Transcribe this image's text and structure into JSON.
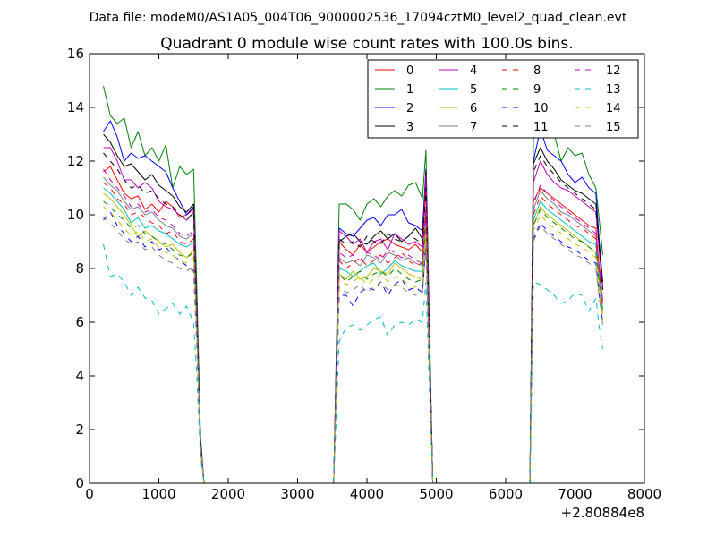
{
  "chart_data": {
    "type": "line",
    "suptitle": "Data file: modeM0/AS1A05_004T06_9000002536_17094cztM0_level2_quad_clean.evt",
    "title": "Quadrant 0 module wise count rates with 100.0s bins.",
    "xlabel": "",
    "ylabel": "",
    "x_offset_label": "+2.80884e8",
    "xlim": [
      0,
      8000
    ],
    "ylim": [
      0,
      16
    ],
    "x_ticks": [
      "0",
      "1000",
      "2000",
      "3000",
      "4000",
      "5000",
      "6000",
      "7000",
      "8000"
    ],
    "y_ticks": [
      "0",
      "2",
      "4",
      "6",
      "8",
      "10",
      "12",
      "14",
      "16"
    ],
    "grid": false,
    "legend_position": "top-right",
    "legend_columns": 4,
    "x": [
      200,
      300,
      400,
      500,
      600,
      700,
      800,
      900,
      1000,
      1100,
      1200,
      1300,
      1400,
      1500,
      1550,
      1600,
      1650,
      1700,
      1800,
      2500,
      3000,
      3500,
      3520,
      3600,
      3700,
      3800,
      3900,
      4000,
      4100,
      4200,
      4300,
      4400,
      4500,
      4600,
      4700,
      4800,
      4850,
      4900,
      4950,
      5000,
      5050,
      5100,
      5500,
      6000,
      6300,
      6350,
      6400,
      6500,
      6600,
      6700,
      6800,
      6900,
      7000,
      7100,
      7200,
      7300,
      7350,
      7400
    ],
    "series": [
      {
        "name": "0",
        "color": "#ff0000",
        "dash": "solid",
        "values": [
          11.6,
          11.8,
          11.3,
          10.8,
          10.6,
          10.7,
          10.2,
          10.4,
          10.1,
          10.5,
          10.3,
          9.9,
          10.0,
          10.2,
          6.0,
          1.5,
          0,
          0,
          0,
          0,
          0,
          0,
          0,
          9.0,
          8.7,
          8.5,
          8.9,
          8.6,
          8.8,
          9.0,
          9.1,
          8.9,
          8.8,
          8.7,
          8.9,
          8.6,
          11.0,
          5.0,
          0,
          0,
          0,
          0,
          0,
          0,
          0,
          0,
          10.5,
          11.0,
          10.8,
          10.6,
          10.4,
          10.2,
          10.0,
          9.8,
          9.6,
          9.5,
          8.0,
          7.5
        ]
      },
      {
        "name": "1",
        "color": "#008000",
        "dash": "solid",
        "values": [
          14.8,
          13.7,
          13.4,
          13.6,
          12.5,
          13.1,
          12.2,
          12.5,
          12.0,
          12.6,
          11.0,
          11.8,
          11.5,
          11.7,
          7.0,
          1.8,
          0,
          0,
          0,
          0,
          0,
          0,
          0,
          10.4,
          10.4,
          10.2,
          9.8,
          10.4,
          10.6,
          10.3,
          10.7,
          10.9,
          10.7,
          11.1,
          11.2,
          10.6,
          12.4,
          6.0,
          0,
          0,
          0,
          0,
          0,
          0,
          0,
          0,
          12.8,
          14.0,
          13.5,
          13.0,
          12.0,
          12.5,
          12.2,
          12.3,
          11.5,
          11.0,
          9.8,
          8.5
        ]
      },
      {
        "name": "2",
        "color": "#0000ff",
        "dash": "solid",
        "values": [
          13.1,
          13.5,
          12.9,
          12.0,
          12.3,
          12.1,
          12.2,
          12.0,
          11.8,
          11.6,
          11.0,
          10.5,
          10.0,
          10.3,
          6.2,
          1.6,
          0,
          0,
          0,
          0,
          0,
          0,
          0,
          9.5,
          9.3,
          9.2,
          9.5,
          9.8,
          9.9,
          9.6,
          10.0,
          10.0,
          10.2,
          9.7,
          9.6,
          9.4,
          11.7,
          5.5,
          0,
          0,
          0,
          0,
          0,
          0,
          0,
          0,
          12.0,
          13.2,
          12.4,
          12.2,
          12.0,
          11.5,
          11.2,
          11.4,
          11.0,
          10.8,
          9.0,
          7.5
        ]
      },
      {
        "name": "3",
        "color": "#000000",
        "dash": "solid",
        "values": [
          13.0,
          12.7,
          12.2,
          11.8,
          11.9,
          11.6,
          11.3,
          11.5,
          11.1,
          10.9,
          10.7,
          10.3,
          10.1,
          10.4,
          6.1,
          1.5,
          0,
          0,
          0,
          0,
          0,
          0,
          0,
          9.0,
          9.2,
          9.3,
          9.0,
          8.9,
          9.2,
          9.4,
          9.1,
          9.3,
          9.0,
          9.2,
          9.5,
          9.1,
          11.6,
          5.3,
          0,
          0,
          0,
          0,
          0,
          0,
          0,
          0,
          11.9,
          12.5,
          12.0,
          11.7,
          11.3,
          11.1,
          10.9,
          10.8,
          10.6,
          10.4,
          8.8,
          7.3
        ]
      },
      {
        "name": "4",
        "color": "#bf00bf",
        "dash": "solid",
        "values": [
          12.5,
          12.5,
          12.0,
          11.3,
          11.3,
          11.0,
          11.2,
          11.0,
          10.5,
          10.3,
          10.2,
          10.0,
          9.8,
          10.1,
          6.0,
          1.5,
          0,
          0,
          0,
          0,
          0,
          0,
          0,
          9.4,
          9.2,
          8.9,
          9.1,
          8.6,
          9.0,
          9.1,
          8.7,
          9.3,
          9.1,
          8.9,
          9.0,
          8.8,
          11.5,
          5.2,
          0,
          0,
          0,
          0,
          0,
          0,
          0,
          0,
          11.2,
          12.0,
          11.5,
          11.2,
          11.0,
          10.9,
          10.7,
          10.5,
          10.3,
          10.1,
          8.6,
          7.2
        ]
      },
      {
        "name": "5",
        "color": "#00bfbf",
        "dash": "solid",
        "values": [
          11.0,
          10.8,
          10.5,
          10.2,
          9.7,
          9.9,
          9.5,
          9.6,
          9.4,
          9.3,
          9.1,
          8.9,
          8.8,
          9.0,
          5.5,
          1.3,
          0,
          0,
          0,
          0,
          0,
          0,
          0,
          8.0,
          7.9,
          7.7,
          7.9,
          8.1,
          8.2,
          7.8,
          8.0,
          8.3,
          8.1,
          8.0,
          7.9,
          7.9,
          9.8,
          4.7,
          0,
          0,
          0,
          0,
          0,
          0,
          0,
          0,
          9.8,
          10.5,
          10.2,
          10.0,
          9.8,
          9.6,
          9.4,
          9.2,
          9.0,
          8.9,
          7.6,
          6.5
        ]
      },
      {
        "name": "6",
        "color": "#bfbf00",
        "dash": "solid",
        "values": [
          10.8,
          10.6,
          10.3,
          10.0,
          9.6,
          9.2,
          9.4,
          9.2,
          9.0,
          8.8,
          8.9,
          8.6,
          8.4,
          8.7,
          5.3,
          1.3,
          0,
          0,
          0,
          0,
          0,
          0,
          0,
          7.8,
          7.6,
          7.9,
          7.6,
          7.7,
          8.0,
          7.9,
          7.8,
          8.2,
          8.0,
          7.8,
          7.7,
          7.6,
          9.5,
          4.6,
          0,
          0,
          0,
          0,
          0,
          0,
          0,
          0,
          9.6,
          10.3,
          10.0,
          9.8,
          9.6,
          9.4,
          9.2,
          9.0,
          8.8,
          8.6,
          7.4,
          6.3
        ]
      },
      {
        "name": "7",
        "color": "#808080",
        "dash": "solid",
        "values": [
          11.4,
          11.1,
          10.9,
          10.5,
          10.2,
          10.3,
          10.0,
          10.1,
          9.8,
          9.6,
          9.5,
          9.2,
          9.1,
          9.3,
          5.7,
          1.4,
          0,
          0,
          0,
          0,
          0,
          0,
          0,
          8.4,
          8.2,
          8.3,
          8.1,
          8.5,
          8.4,
          8.2,
          8.6,
          8.5,
          8.3,
          8.4,
          8.2,
          8.1,
          10.2,
          4.9,
          0,
          0,
          0,
          0,
          0,
          0,
          0,
          0,
          10.2,
          10.9,
          10.6,
          10.4,
          10.1,
          10.0,
          9.8,
          9.6,
          9.4,
          9.2,
          7.9,
          6.8
        ]
      },
      {
        "name": "8",
        "color": "#ff0000",
        "dash": "dashed",
        "values": [
          11.2,
          11.0,
          10.6,
          10.4,
          10.0,
          10.1,
          9.9,
          9.7,
          9.6,
          9.3,
          9.4,
          9.0,
          8.9,
          9.1,
          5.6,
          1.4,
          0,
          0,
          0,
          0,
          0,
          0,
          0,
          8.3,
          8.0,
          8.2,
          8.4,
          8.1,
          8.3,
          8.5,
          8.2,
          8.4,
          8.6,
          8.3,
          8.1,
          8.2,
          10.0,
          4.8,
          0,
          0,
          0,
          0,
          0,
          0,
          0,
          0,
          10.0,
          10.7,
          10.4,
          10.2,
          10.0,
          9.8,
          9.6,
          9.5,
          9.3,
          9.1,
          7.8,
          6.6
        ]
      },
      {
        "name": "9",
        "color": "#008000",
        "dash": "dashed",
        "values": [
          10.5,
          10.3,
          10.0,
          9.8,
          9.5,
          9.6,
          9.3,
          9.2,
          9.0,
          8.9,
          8.7,
          8.5,
          8.4,
          8.6,
          5.3,
          1.3,
          0,
          0,
          0,
          0,
          0,
          0,
          0,
          7.8,
          7.5,
          7.7,
          7.9,
          7.6,
          7.8,
          7.9,
          7.7,
          8.0,
          7.8,
          7.6,
          7.5,
          7.6,
          9.4,
          4.5,
          0,
          0,
          0,
          0,
          0,
          0,
          0,
          0,
          9.6,
          10.2,
          9.9,
          9.7,
          9.5,
          9.3,
          9.1,
          9.0,
          8.8,
          8.6,
          7.4,
          6.3
        ]
      },
      {
        "name": "10",
        "color": "#0000ff",
        "dash": "dashed",
        "values": [
          9.8,
          10.1,
          9.6,
          9.3,
          9.0,
          9.2,
          8.8,
          9.0,
          8.7,
          8.8,
          8.5,
          8.3,
          8.1,
          7.9,
          5.0,
          1.2,
          0,
          0,
          0,
          0,
          0,
          0,
          0,
          7.0,
          7.0,
          6.6,
          7.1,
          7.3,
          7.2,
          7.5,
          7.0,
          7.4,
          7.6,
          7.2,
          7.3,
          7.1,
          8.9,
          4.3,
          0,
          0,
          0,
          0,
          0,
          0,
          0,
          0,
          9.1,
          9.7,
          9.4,
          9.2,
          9.0,
          8.8,
          8.7,
          8.5,
          8.3,
          8.2,
          7.0,
          6.0
        ]
      },
      {
        "name": "11",
        "color": "#000000",
        "dash": "dashed",
        "values": [
          12.3,
          12.0,
          11.7,
          11.3,
          11.0,
          11.1,
          10.8,
          10.9,
          10.6,
          10.4,
          10.3,
          10.0,
          9.8,
          10.1,
          6.0,
          1.5,
          0,
          0,
          0,
          0,
          0,
          0,
          0,
          9.1,
          8.9,
          9.0,
          8.8,
          9.2,
          9.0,
          8.9,
          9.3,
          9.1,
          9.0,
          9.2,
          9.1,
          8.9,
          11.0,
          5.2,
          0,
          0,
          0,
          0,
          0,
          0,
          0,
          0,
          11.6,
          12.2,
          11.8,
          11.5,
          11.2,
          11.0,
          10.8,
          10.6,
          10.4,
          10.2,
          8.7,
          7.2
        ]
      },
      {
        "name": "12",
        "color": "#bf00bf",
        "dash": "dashed",
        "values": [
          11.7,
          11.3,
          11.0,
          10.7,
          10.3,
          10.4,
          10.1,
          10.2,
          9.9,
          9.8,
          9.6,
          9.3,
          9.2,
          9.4,
          5.8,
          1.4,
          0,
          0,
          0,
          0,
          0,
          0,
          0,
          8.6,
          8.4,
          8.5,
          8.3,
          8.6,
          8.5,
          8.3,
          8.7,
          8.6,
          8.4,
          8.5,
          8.3,
          8.2,
          10.3,
          4.9,
          0,
          0,
          0,
          0,
          0,
          0,
          0,
          0,
          10.4,
          11.1,
          10.8,
          10.5,
          10.3,
          10.1,
          9.9,
          9.7,
          9.5,
          9.3,
          8.0,
          6.8
        ]
      },
      {
        "name": "13",
        "color": "#00bfbf",
        "dash": "dashed",
        "values": [
          8.9,
          7.7,
          7.8,
          7.5,
          7.0,
          7.3,
          6.9,
          6.8,
          6.3,
          6.5,
          6.7,
          6.3,
          6.6,
          6.0,
          3.8,
          1.0,
          0,
          0,
          0,
          0,
          0,
          0,
          0,
          5.3,
          5.8,
          5.9,
          5.7,
          5.9,
          6.1,
          6.2,
          5.5,
          5.9,
          6.0,
          5.9,
          6.1,
          6.0,
          7.5,
          3.5,
          0,
          0,
          0,
          0,
          0,
          0,
          0,
          0,
          7.5,
          7.4,
          7.2,
          7.0,
          6.7,
          6.8,
          7.1,
          7.0,
          6.4,
          6.9,
          5.8,
          5.0
        ]
      },
      {
        "name": "14",
        "color": "#bfbf00",
        "dash": "dashed",
        "values": [
          10.3,
          10.1,
          9.8,
          9.5,
          9.2,
          9.4,
          9.0,
          9.1,
          8.8,
          8.6,
          8.5,
          8.3,
          8.2,
          8.4,
          5.2,
          1.3,
          0,
          0,
          0,
          0,
          0,
          0,
          0,
          7.6,
          7.4,
          7.5,
          7.7,
          7.4,
          7.6,
          7.8,
          7.5,
          7.7,
          7.6,
          7.4,
          7.3,
          7.4,
          9.2,
          4.4,
          0,
          0,
          0,
          0,
          0,
          0,
          0,
          0,
          9.4,
          10.0,
          9.7,
          9.5,
          9.3,
          9.1,
          8.9,
          8.8,
          8.6,
          8.4,
          7.2,
          6.1
        ]
      },
      {
        "name": "15",
        "color": "#808080",
        "dash": "dashed",
        "values": [
          9.9,
          9.7,
          9.4,
          9.1,
          8.9,
          9.0,
          8.7,
          8.8,
          8.5,
          8.3,
          8.2,
          8.0,
          7.9,
          8.1,
          5.0,
          1.2,
          0,
          0,
          0,
          0,
          0,
          0,
          0,
          7.3,
          7.1,
          7.2,
          7.4,
          7.1,
          7.3,
          7.5,
          7.2,
          7.4,
          7.3,
          7.1,
          7.0,
          7.1,
          8.8,
          4.2,
          0,
          0,
          0,
          0,
          0,
          0,
          0,
          0,
          9.0,
          9.6,
          9.3,
          9.1,
          8.9,
          8.7,
          8.5,
          8.4,
          8.2,
          8.0,
          6.9,
          5.9
        ]
      }
    ]
  }
}
